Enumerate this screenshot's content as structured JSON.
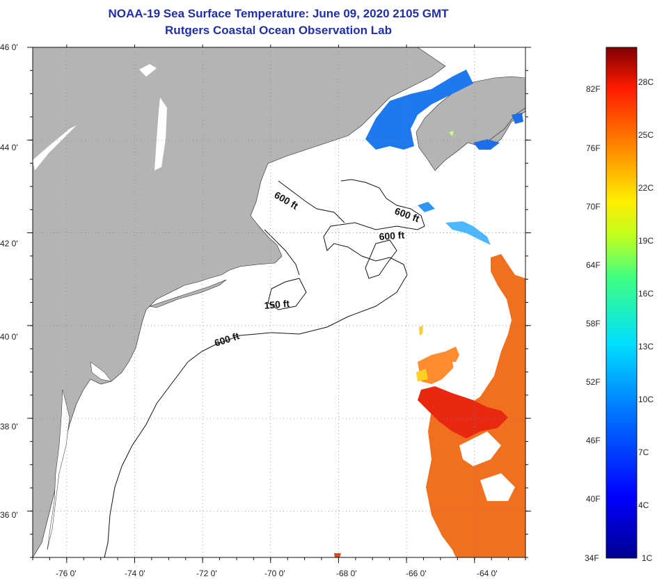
{
  "title": {
    "line1": "NOAA-19 Sea Surface Temperature:  June 09, 2020 2105 GMT",
    "line2": "Rutgers Coastal Ocean Observation Lab"
  },
  "map": {
    "lat_labels": [
      "46 0'",
      "44 0'",
      "42 0'",
      "40 0'",
      "38 0'",
      "36 0'"
    ],
    "lat_values": [
      46,
      44,
      42,
      40,
      38,
      36
    ],
    "lon_labels": [
      "-76 0'",
      "-74 0'",
      "-72 0'",
      "-70 0'",
      "-68 0'",
      "-66 0'",
      "-64 0'"
    ],
    "lon_values": [
      -76,
      -74,
      -72,
      -70,
      -68,
      -66,
      -64
    ],
    "lon_range": [
      -77,
      -62.5
    ],
    "lat_range": [
      35,
      46
    ],
    "contour_labels": [
      "600 ft",
      "600 ft",
      "600 ft",
      "150 ft",
      "600 ft"
    ],
    "colors": {
      "land": "#b4b4b4",
      "ocean": "#ffffff",
      "grid": "#888888"
    }
  },
  "colorbar": {
    "fahrenheit": [
      "82F",
      "76F",
      "70F",
      "64F",
      "58F",
      "52F",
      "46F",
      "40F",
      "34F"
    ],
    "celsius": [
      "28C",
      "25C",
      "22C",
      "19C",
      "16C",
      "13C",
      "10C",
      "7C",
      "4C",
      "1C"
    ]
  }
}
